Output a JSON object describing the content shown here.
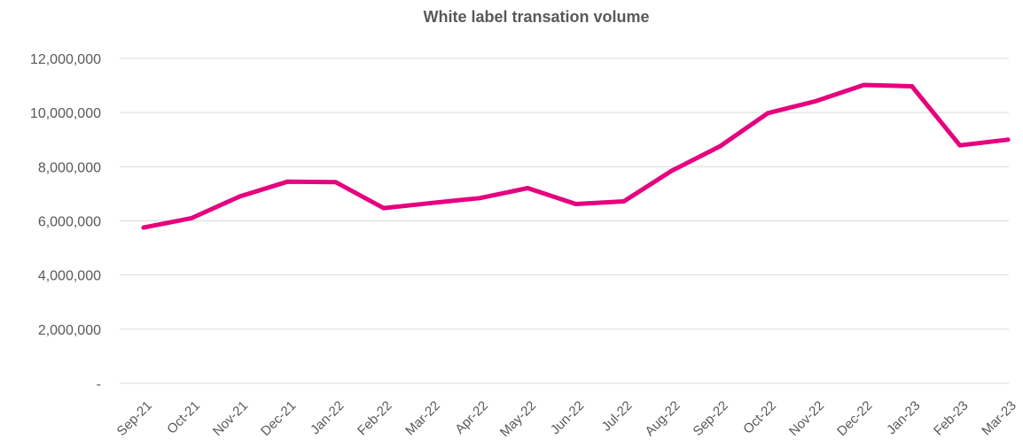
{
  "chart_data": {
    "type": "line",
    "title": "White label transation volume",
    "xlabel": "",
    "ylabel": "",
    "categories": [
      "Sep-21",
      "Oct-21",
      "Nov-21",
      "Dec-21",
      "Jan-22",
      "Feb-22",
      "Mar-22",
      "Apr-22",
      "May-22",
      "Jun-22",
      "Jul-22",
      "Aug-22",
      "Sep-22",
      "Oct-22",
      "Nov-22",
      "Dec-22",
      "Jan-23",
      "Feb-23",
      "Mar-23"
    ],
    "series": [
      {
        "values": [
          5750000,
          6100000,
          6900000,
          7450000,
          7430000,
          6470000,
          6660000,
          6840000,
          7210000,
          6620000,
          6720000,
          7850000,
          8750000,
          9980000,
          10420000,
          11020000,
          10970000,
          8790000,
          9000000
        ],
        "color": "#e6007e"
      }
    ],
    "ylim": [
      0,
      12000000
    ],
    "yticks": [
      0,
      2000000,
      4000000,
      6000000,
      8000000,
      10000000,
      12000000
    ],
    "ytick_labels": [
      "-",
      "2,000,000",
      "4,000,000",
      "6,000,000",
      "8,000,000",
      "10,000,000",
      "12,000,000"
    ],
    "grid": true,
    "legend": "none"
  }
}
